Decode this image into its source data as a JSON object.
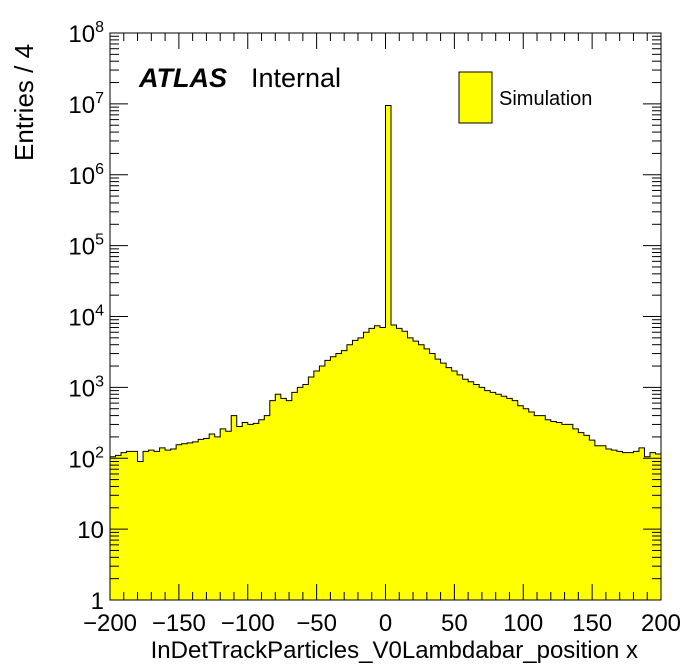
{
  "chart_data": {
    "type": "bar",
    "subtype": "histogram",
    "xlabel": "InDetTrackParticles_V0Lambdabar_position x",
    "ylabel": "Entries / 4",
    "xlim": [
      -200,
      200
    ],
    "ylim": [
      1,
      100000000
    ],
    "yscale": "log",
    "bin_width": 4,
    "x_ticks": [
      "−200",
      "−150",
      "−100",
      "−50",
      "0",
      "50",
      "100",
      "150",
      "200"
    ],
    "y_ticks": [
      {
        "value": 1,
        "base": "1",
        "exp": ""
      },
      {
        "value": 10,
        "base": "10",
        "exp": ""
      },
      {
        "value": 100,
        "base": "10",
        "exp": "2"
      },
      {
        "value": 1000,
        "base": "10",
        "exp": "3"
      },
      {
        "value": 10000,
        "base": "10",
        "exp": "4"
      },
      {
        "value": 100000,
        "base": "10",
        "exp": "5"
      },
      {
        "value": 1000000,
        "base": "10",
        "exp": "6"
      },
      {
        "value": 10000000,
        "base": "10",
        "exp": "7"
      },
      {
        "value": 100000000,
        "base": "10",
        "exp": "8"
      }
    ],
    "fill_color": "#ffff00",
    "edge_color": "#000000",
    "legend": {
      "placement": "top-right",
      "entries": [
        "Simulation"
      ]
    },
    "labels": {
      "atlas": "ATLAS",
      "status": "Internal"
    },
    "bins": [
      {
        "x": -198,
        "y": 105
      },
      {
        "x": -194,
        "y": 110
      },
      {
        "x": -190,
        "y": 120
      },
      {
        "x": -186,
        "y": 125
      },
      {
        "x": -182,
        "y": 125
      },
      {
        "x": -178,
        "y": 90
      },
      {
        "x": -174,
        "y": 125
      },
      {
        "x": -170,
        "y": 130
      },
      {
        "x": -166,
        "y": 125
      },
      {
        "x": -162,
        "y": 140
      },
      {
        "x": -158,
        "y": 130
      },
      {
        "x": -154,
        "y": 135
      },
      {
        "x": -150,
        "y": 155
      },
      {
        "x": -146,
        "y": 160
      },
      {
        "x": -142,
        "y": 165
      },
      {
        "x": -138,
        "y": 170
      },
      {
        "x": -134,
        "y": 185
      },
      {
        "x": -130,
        "y": 190
      },
      {
        "x": -126,
        "y": 220
      },
      {
        "x": -122,
        "y": 200
      },
      {
        "x": -118,
        "y": 260
      },
      {
        "x": -114,
        "y": 240
      },
      {
        "x": -110,
        "y": 400
      },
      {
        "x": -106,
        "y": 280
      },
      {
        "x": -102,
        "y": 320
      },
      {
        "x": -98,
        "y": 300
      },
      {
        "x": -94,
        "y": 310
      },
      {
        "x": -90,
        "y": 350
      },
      {
        "x": -86,
        "y": 400
      },
      {
        "x": -82,
        "y": 650
      },
      {
        "x": -78,
        "y": 800
      },
      {
        "x": -74,
        "y": 700
      },
      {
        "x": -70,
        "y": 650
      },
      {
        "x": -66,
        "y": 850
      },
      {
        "x": -62,
        "y": 1000
      },
      {
        "x": -58,
        "y": 1100
      },
      {
        "x": -54,
        "y": 1400
      },
      {
        "x": -50,
        "y": 1700
      },
      {
        "x": -46,
        "y": 2000
      },
      {
        "x": -42,
        "y": 2400
      },
      {
        "x": -38,
        "y": 2700
      },
      {
        "x": -34,
        "y": 3000
      },
      {
        "x": -30,
        "y": 3300
      },
      {
        "x": -26,
        "y": 4000
      },
      {
        "x": -22,
        "y": 4600
      },
      {
        "x": -18,
        "y": 5000
      },
      {
        "x": -14,
        "y": 6000
      },
      {
        "x": -10,
        "y": 6800
      },
      {
        "x": -6,
        "y": 7400
      },
      {
        "x": -2,
        "y": 7000
      },
      {
        "x": 2,
        "y": 9500000
      },
      {
        "x": 6,
        "y": 7600
      },
      {
        "x": 10,
        "y": 6800
      },
      {
        "x": 14,
        "y": 6200
      },
      {
        "x": 18,
        "y": 5000
      },
      {
        "x": 22,
        "y": 4500
      },
      {
        "x": 26,
        "y": 4000
      },
      {
        "x": 30,
        "y": 3500
      },
      {
        "x": 34,
        "y": 3000
      },
      {
        "x": 38,
        "y": 2500
      },
      {
        "x": 42,
        "y": 2200
      },
      {
        "x": 46,
        "y": 1900
      },
      {
        "x": 50,
        "y": 1700
      },
      {
        "x": 54,
        "y": 1500
      },
      {
        "x": 58,
        "y": 1300
      },
      {
        "x": 62,
        "y": 1200
      },
      {
        "x": 66,
        "y": 1100
      },
      {
        "x": 70,
        "y": 1000
      },
      {
        "x": 74,
        "y": 900
      },
      {
        "x": 78,
        "y": 850
      },
      {
        "x": 82,
        "y": 800
      },
      {
        "x": 86,
        "y": 750
      },
      {
        "x": 90,
        "y": 700
      },
      {
        "x": 94,
        "y": 650
      },
      {
        "x": 98,
        "y": 550
      },
      {
        "x": 102,
        "y": 500
      },
      {
        "x": 106,
        "y": 450
      },
      {
        "x": 110,
        "y": 400
      },
      {
        "x": 114,
        "y": 400
      },
      {
        "x": 118,
        "y": 350
      },
      {
        "x": 122,
        "y": 330
      },
      {
        "x": 126,
        "y": 320
      },
      {
        "x": 130,
        "y": 300
      },
      {
        "x": 134,
        "y": 300
      },
      {
        "x": 138,
        "y": 260
      },
      {
        "x": 142,
        "y": 230
      },
      {
        "x": 146,
        "y": 210
      },
      {
        "x": 150,
        "y": 180
      },
      {
        "x": 154,
        "y": 150
      },
      {
        "x": 158,
        "y": 150
      },
      {
        "x": 162,
        "y": 135
      },
      {
        "x": 166,
        "y": 130
      },
      {
        "x": 170,
        "y": 125
      },
      {
        "x": 174,
        "y": 120
      },
      {
        "x": 178,
        "y": 120
      },
      {
        "x": 182,
        "y": 125
      },
      {
        "x": 186,
        "y": 140
      },
      {
        "x": 190,
        "y": 105
      },
      {
        "x": 194,
        "y": 120
      },
      {
        "x": 198,
        "y": 115
      }
    ]
  }
}
